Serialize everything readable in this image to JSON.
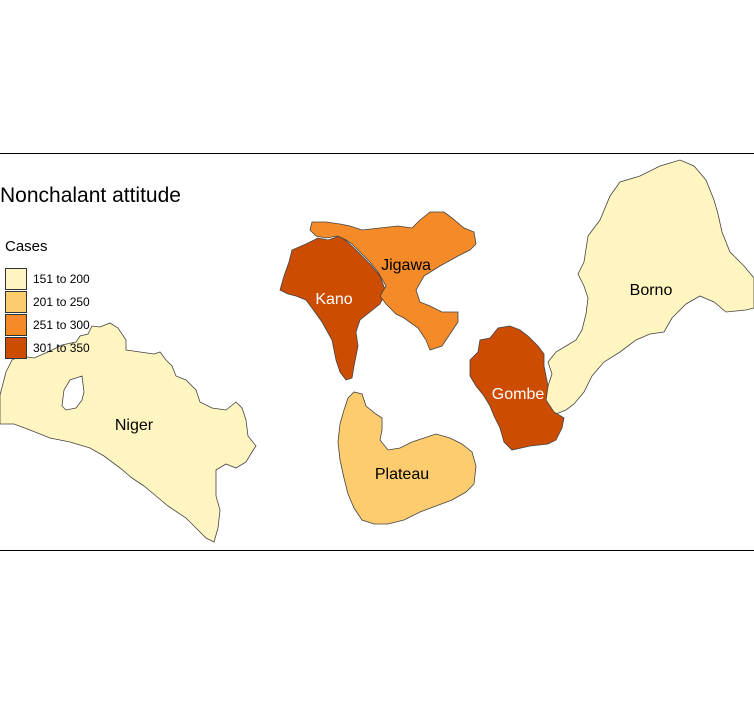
{
  "map": {
    "title": "Nonchalant attitude",
    "legend": {
      "title": "Cases",
      "items": [
        {
          "label": "151 to 200",
          "color": "#fff5c0"
        },
        {
          "label": "201 to 250",
          "color": "#fdcc6e"
        },
        {
          "label": "251 to 300",
          "color": "#f48b28"
        },
        {
          "label": "301 to 350",
          "color": "#cc4c02"
        }
      ]
    },
    "regions": [
      {
        "name": "Niger",
        "class": "151 to 200",
        "color": "#fff5c0",
        "label_color": "#000000"
      },
      {
        "name": "Kano",
        "class": "301 to 350",
        "color": "#cc4c02",
        "label_color": "#ffffff"
      },
      {
        "name": "Jigawa",
        "class": "251 to 300",
        "color": "#f48b28",
        "label_color": "#000000"
      },
      {
        "name": "Borno",
        "class": "151 to 200",
        "color": "#fff5c0",
        "label_color": "#000000"
      },
      {
        "name": "Gombe",
        "class": "301 to 350",
        "color": "#cc4c02",
        "label_color": "#ffffff"
      },
      {
        "name": "Plateau",
        "class": "201 to 250",
        "color": "#fdcc6e",
        "label_color": "#000000"
      }
    ]
  }
}
